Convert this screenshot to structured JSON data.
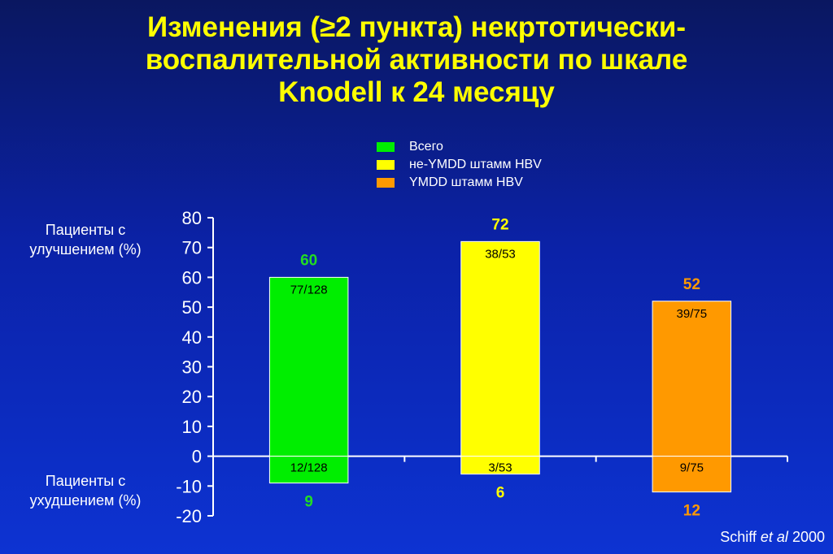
{
  "title_lines": [
    "Изменения (≥2 пункта) некртотически-",
    "воспалительной активности по шкале",
    "Knodell к 24 месяцу"
  ],
  "side_labels": {
    "improved": [
      "Пациенты с",
      "улучшением (%)"
    ],
    "worsened": [
      "Пациенты с",
      "ухудшением (%)"
    ]
  },
  "source": {
    "author": "Schiff",
    "etal": "et al",
    "year": "2000"
  },
  "colors": {
    "total": "#00ee00",
    "non_ymdd": "#ffff00",
    "ymdd": "#ff9900",
    "total_label": "#22dd22",
    "non_ymdd_label": "#ffff00",
    "ymdd_label": "#ff9900",
    "axis": "#ffffff"
  },
  "chart_data": {
    "type": "bar",
    "title": "Изменения (≥2 пункта) некртотически-воспалительной активности по шкале Knodell к 24 месяцу",
    "ylim": [
      -20,
      80
    ],
    "yticks": [
      80,
      70,
      60,
      50,
      40,
      30,
      20,
      10,
      0,
      -10,
      -20
    ],
    "grid": false,
    "legend_position": "top-center",
    "series": [
      {
        "name": "Всего",
        "color_key": "total",
        "improved": 60,
        "improved_label": "60",
        "improved_fraction": "77/128",
        "worsened": -9,
        "worsened_label": "9",
        "worsened_fraction": "12/128"
      },
      {
        "name": "не-YMDD штамм HBV",
        "color_key": "non_ymdd",
        "improved": 72,
        "improved_label": "72",
        "improved_fraction": "38/53",
        "worsened": -6,
        "worsened_label": "6",
        "worsened_fraction": "3/53"
      },
      {
        "name": "YMDD штамм HBV",
        "color_key": "ymdd",
        "improved": 52,
        "improved_label": "52",
        "improved_fraction": "39/75",
        "worsened": -12,
        "worsened_label": "12",
        "worsened_fraction": "9/75"
      }
    ]
  }
}
